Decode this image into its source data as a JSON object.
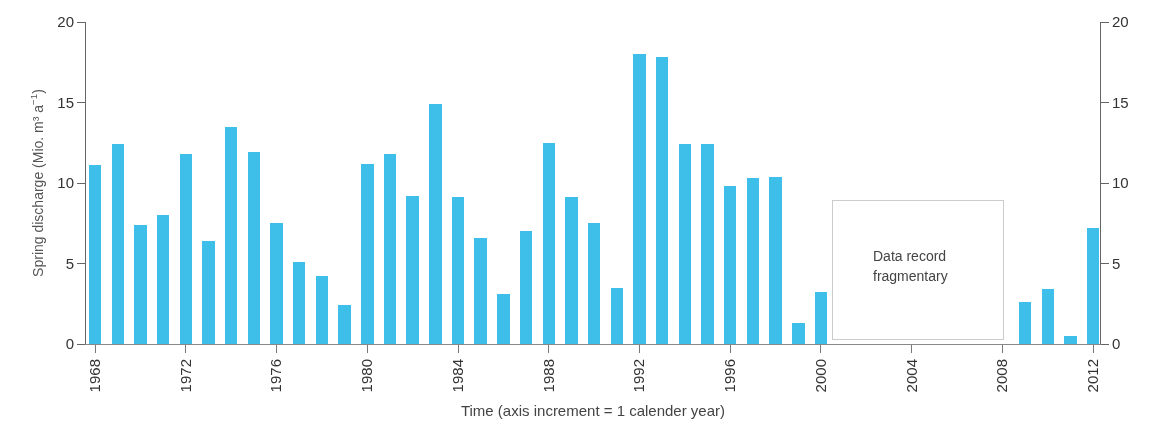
{
  "chart_data": {
    "type": "bar",
    "xlabel": "Time (axis increment = 1 calender year)",
    "ylabel": "Spring discharge (Mio. m³ a$^{−1}$)",
    "x": [
      1968,
      1969,
      1970,
      1971,
      1972,
      1973,
      1974,
      1975,
      1976,
      1977,
      1978,
      1979,
      1980,
      1981,
      1982,
      1983,
      1984,
      1985,
      1986,
      1987,
      1988,
      1989,
      1990,
      1991,
      1992,
      1993,
      1994,
      1995,
      1996,
      1997,
      1998,
      1999,
      2000,
      2001,
      2002,
      2003,
      2004,
      2005,
      2006,
      2007,
      2008,
      2009,
      2010,
      2011,
      2012
    ],
    "values": [
      11.1,
      12.4,
      7.4,
      8.0,
      11.8,
      6.4,
      13.5,
      11.9,
      7.5,
      5.1,
      4.2,
      2.4,
      11.2,
      11.8,
      9.2,
      14.9,
      9.1,
      6.6,
      3.1,
      7.0,
      12.5,
      9.1,
      7.5,
      3.5,
      18.0,
      17.8,
      12.4,
      12.4,
      9.8,
      10.3,
      10.4,
      1.3,
      3.2,
      null,
      null,
      null,
      null,
      null,
      null,
      null,
      null,
      2.6,
      3.4,
      0.5,
      7.2
    ],
    "color": "#3dbfea",
    "xlim": [
      1967.6,
      2012.3
    ],
    "xticks": [
      1968,
      1972,
      1976,
      1980,
      1984,
      1988,
      1992,
      1996,
      2000,
      2004,
      2008,
      2012
    ],
    "ylim": [
      0,
      20
    ],
    "yticks": [
      0,
      5,
      10,
      15,
      20
    ],
    "y2lim": [
      0,
      20
    ],
    "y2ticks": [
      0,
      5,
      10,
      15,
      20
    ],
    "annotations": [
      "Data record\nfragmentary"
    ],
    "grid": false
  }
}
